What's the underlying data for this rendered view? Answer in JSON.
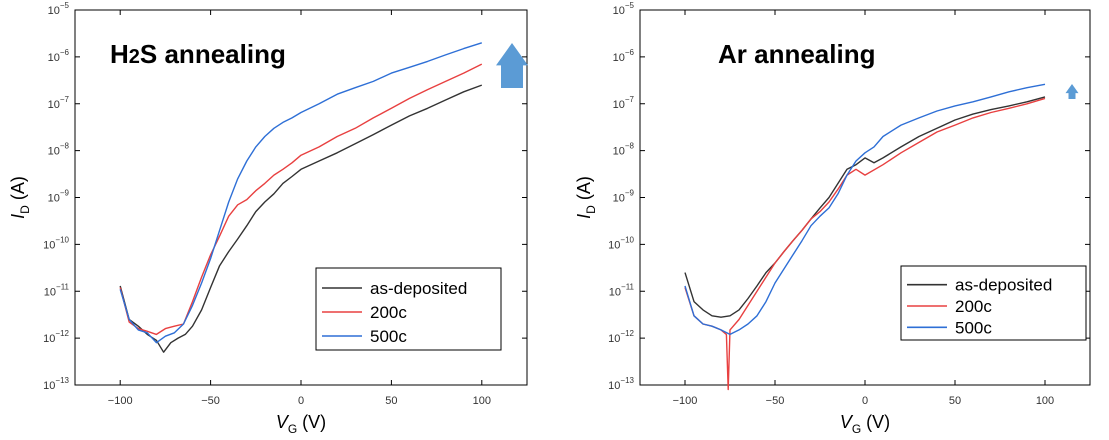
{
  "chart_data": [
    {
      "type": "line",
      "title": "H2S annealing",
      "xlabel": "VG (V)",
      "ylabel": "ID (A)",
      "y_scale": "log",
      "xlim": [
        -125,
        125
      ],
      "ylim": [
        1e-13,
        1e-05
      ],
      "x_ticks": [
        "−100",
        "−50",
        "0",
        "50",
        "100"
      ],
      "y_ticks": [
        "10−13",
        "10−12",
        "10−11",
        "10−10",
        "10−9",
        "10−8",
        "10−7",
        "10−6",
        "10−5"
      ],
      "legend": "bottom-right",
      "arrow": "up",
      "series": [
        {
          "name": "as-deposited",
          "color": "#333333",
          "points": [
            [
              -100,
              1.3e-11
            ],
            [
              -95,
              2.5e-12
            ],
            [
              -90,
              1.8e-12
            ],
            [
              -85,
              1.2e-12
            ],
            [
              -80,
              9e-13
            ],
            [
              -76,
              5e-13
            ],
            [
              -72,
              8e-13
            ],
            [
              -68,
              1e-12
            ],
            [
              -64,
              1.2e-12
            ],
            [
              -60,
              1.8e-12
            ],
            [
              -55,
              4e-12
            ],
            [
              -50,
              1.2e-11
            ],
            [
              -45,
              3.5e-11
            ],
            [
              -40,
              7e-11
            ],
            [
              -35,
              1.3e-10
            ],
            [
              -30,
              2.5e-10
            ],
            [
              -25,
              5e-10
            ],
            [
              -20,
              8e-10
            ],
            [
              -15,
              1.2e-09
            ],
            [
              -10,
              2e-09
            ],
            [
              -5,
              2.8e-09
            ],
            [
              0,
              4e-09
            ],
            [
              10,
              6e-09
            ],
            [
              20,
              9e-09
            ],
            [
              30,
              1.4e-08
            ],
            [
              40,
              2.2e-08
            ],
            [
              50,
              3.5e-08
            ],
            [
              60,
              5.5e-08
            ],
            [
              70,
              8e-08
            ],
            [
              80,
              1.2e-07
            ],
            [
              90,
              1.8e-07
            ],
            [
              100,
              2.5e-07
            ]
          ]
        },
        {
          "name": "200c",
          "color": "#e84040",
          "points": [
            [
              -100,
              1.2e-11
            ],
            [
              -95,
              2.2e-12
            ],
            [
              -90,
              1.6e-12
            ],
            [
              -85,
              1.4e-12
            ],
            [
              -80,
              1.2e-12
            ],
            [
              -75,
              1.6e-12
            ],
            [
              -70,
              1.8e-12
            ],
            [
              -65,
              2e-12
            ],
            [
              -60,
              6e-12
            ],
            [
              -55,
              2e-11
            ],
            [
              -50,
              6e-11
            ],
            [
              -45,
              1.5e-10
            ],
            [
              -40,
              4e-10
            ],
            [
              -35,
              7e-10
            ],
            [
              -30,
              9e-10
            ],
            [
              -25,
              1.4e-09
            ],
            [
              -20,
              2e-09
            ],
            [
              -15,
              3e-09
            ],
            [
              -10,
              4e-09
            ],
            [
              -5,
              5.5e-09
            ],
            [
              0,
              8e-09
            ],
            [
              10,
              1.2e-08
            ],
            [
              20,
              2e-08
            ],
            [
              30,
              3e-08
            ],
            [
              40,
              5e-08
            ],
            [
              50,
              8e-08
            ],
            [
              60,
              1.3e-07
            ],
            [
              70,
              2e-07
            ],
            [
              80,
              3e-07
            ],
            [
              90,
              4.5e-07
            ],
            [
              100,
              7e-07
            ]
          ]
        },
        {
          "name": "500c",
          "color": "#2e6fd6",
          "points": [
            [
              -100,
              1.1e-11
            ],
            [
              -95,
              2.5e-12
            ],
            [
              -90,
              1.5e-12
            ],
            [
              -85,
              1.3e-12
            ],
            [
              -80,
              8e-13
            ],
            [
              -75,
              1.1e-12
            ],
            [
              -70,
              1.3e-12
            ],
            [
              -65,
              2e-12
            ],
            [
              -60,
              5e-12
            ],
            [
              -55,
              1.5e-11
            ],
            [
              -50,
              5e-11
            ],
            [
              -45,
              2e-10
            ],
            [
              -40,
              8e-10
            ],
            [
              -35,
              2.5e-09
            ],
            [
              -30,
              6e-09
            ],
            [
              -25,
              1.2e-08
            ],
            [
              -20,
              2e-08
            ],
            [
              -15,
              3e-08
            ],
            [
              -10,
              4e-08
            ],
            [
              -5,
              5e-08
            ],
            [
              0,
              6.5e-08
            ],
            [
              10,
              1e-07
            ],
            [
              20,
              1.6e-07
            ],
            [
              30,
              2.2e-07
            ],
            [
              40,
              3e-07
            ],
            [
              50,
              4.5e-07
            ],
            [
              60,
              6e-07
            ],
            [
              70,
              8e-07
            ],
            [
              80,
              1.1e-06
            ],
            [
              90,
              1.5e-06
            ],
            [
              100,
              2e-06
            ]
          ]
        }
      ]
    },
    {
      "type": "line",
      "title": "Ar annealing",
      "xlabel": "VG (V)",
      "ylabel": "ID (A)",
      "y_scale": "log",
      "xlim": [
        -125,
        125
      ],
      "ylim": [
        1e-13,
        1e-05
      ],
      "x_ticks": [
        "−100",
        "−50",
        "0",
        "50",
        "100"
      ],
      "y_ticks": [
        "10−13",
        "10−12",
        "10−11",
        "10−10",
        "10−9",
        "10−8",
        "10−7",
        "10−6",
        "10−5"
      ],
      "legend": "bottom-right",
      "arrow": "up",
      "series": [
        {
          "name": "as-deposited",
          "color": "#333333",
          "points": [
            [
              -100,
              2.5e-11
            ],
            [
              -95,
              6e-12
            ],
            [
              -90,
              4e-12
            ],
            [
              -85,
              3e-12
            ],
            [
              -80,
              2.8e-12
            ],
            [
              -75,
              3e-12
            ],
            [
              -70,
              4e-12
            ],
            [
              -65,
              7e-12
            ],
            [
              -60,
              1.3e-11
            ],
            [
              -55,
              2.5e-11
            ],
            [
              -50,
              4e-11
            ],
            [
              -45,
              7e-11
            ],
            [
              -40,
              1.2e-10
            ],
            [
              -35,
              2e-10
            ],
            [
              -30,
              3.5e-10
            ],
            [
              -25,
              6e-10
            ],
            [
              -20,
              1e-09
            ],
            [
              -15,
              2e-09
            ],
            [
              -10,
              4e-09
            ],
            [
              -5,
              5e-09
            ],
            [
              0,
              7e-09
            ],
            [
              5,
              5.5e-09
            ],
            [
              10,
              7e-09
            ],
            [
              20,
              1.2e-08
            ],
            [
              30,
              2e-08
            ],
            [
              40,
              3e-08
            ],
            [
              50,
              4.5e-08
            ],
            [
              60,
              6e-08
            ],
            [
              70,
              7.5e-08
            ],
            [
              80,
              9e-08
            ],
            [
              90,
              1.1e-07
            ],
            [
              100,
              1.4e-07
            ]
          ]
        },
        {
          "name": "200c",
          "color": "#e84040",
          "points": [
            [
              -100,
              1.2e-11
            ],
            [
              -95,
              3e-12
            ],
            [
              -90,
              2e-12
            ],
            [
              -85,
              1.8e-12
            ],
            [
              -80,
              1.5e-12
            ],
            [
              -77,
              1.2e-12
            ],
            [
              -76,
              8e-14
            ],
            [
              -75,
              1.5e-12
            ],
            [
              -70,
              2.5e-12
            ],
            [
              -65,
              5e-12
            ],
            [
              -60,
              1e-11
            ],
            [
              -55,
              2e-11
            ],
            [
              -50,
              4e-11
            ],
            [
              -45,
              7e-11
            ],
            [
              -40,
              1.2e-10
            ],
            [
              -35,
              2e-10
            ],
            [
              -30,
              3.5e-10
            ],
            [
              -25,
              5e-10
            ],
            [
              -20,
              8e-10
            ],
            [
              -15,
              1.5e-09
            ],
            [
              -10,
              3e-09
            ],
            [
              -5,
              4e-09
            ],
            [
              0,
              3e-09
            ],
            [
              10,
              5e-09
            ],
            [
              20,
              9e-09
            ],
            [
              30,
              1.5e-08
            ],
            [
              40,
              2.5e-08
            ],
            [
              50,
              3.5e-08
            ],
            [
              60,
              5e-08
            ],
            [
              70,
              6.5e-08
            ],
            [
              80,
              8e-08
            ],
            [
              90,
              1e-07
            ],
            [
              100,
              1.3e-07
            ]
          ]
        },
        {
          "name": "500c",
          "color": "#2e6fd6",
          "points": [
            [
              -100,
              1.3e-11
            ],
            [
              -95,
              3e-12
            ],
            [
              -90,
              2e-12
            ],
            [
              -85,
              1.8e-12
            ],
            [
              -80,
              1.5e-12
            ],
            [
              -75,
              1.2e-12
            ],
            [
              -70,
              1.5e-12
            ],
            [
              -65,
              2e-12
            ],
            [
              -60,
              3e-12
            ],
            [
              -55,
              6e-12
            ],
            [
              -50,
              1.5e-11
            ],
            [
              -45,
              3e-11
            ],
            [
              -40,
              6e-11
            ],
            [
              -35,
              1.2e-10
            ],
            [
              -30,
              2.5e-10
            ],
            [
              -25,
              4e-10
            ],
            [
              -20,
              6e-10
            ],
            [
              -15,
              1.2e-09
            ],
            [
              -10,
              3e-09
            ],
            [
              -5,
              6e-09
            ],
            [
              0,
              9e-09
            ],
            [
              5,
              1.2e-08
            ],
            [
              10,
              2e-08
            ],
            [
              20,
              3.5e-08
            ],
            [
              30,
              5e-08
            ],
            [
              40,
              7e-08
            ],
            [
              50,
              9e-08
            ],
            [
              60,
              1.1e-07
            ],
            [
              70,
              1.4e-07
            ],
            [
              80,
              1.8e-07
            ],
            [
              90,
              2.2e-07
            ],
            [
              100,
              2.6e-07
            ]
          ]
        }
      ]
    }
  ]
}
